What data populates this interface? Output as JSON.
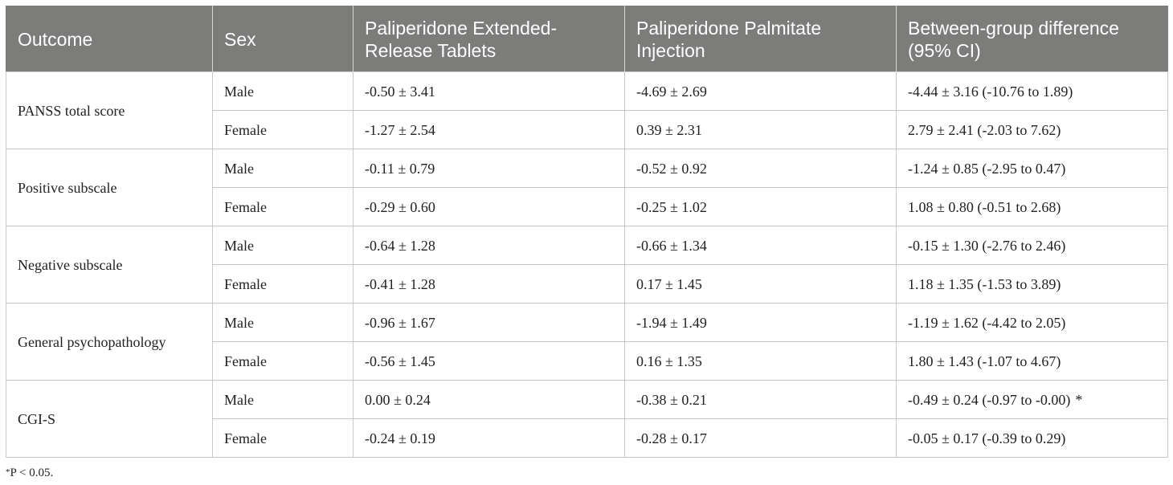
{
  "table": {
    "headers": [
      "Outcome",
      "Sex",
      "Paliperidone Extended-Release Tablets",
      "Paliperidone Palmitate Injection",
      "Between-group difference (95% CI)"
    ],
    "groups": [
      {
        "outcome": "PANSS total score",
        "rows": [
          {
            "sex": "Male",
            "er_tablets": "-0.50 ± 3.41",
            "palmitate": "-4.69 ± 2.69",
            "difference": "-4.44 ± 3.16 (-10.76 to 1.89)",
            "mark": ""
          },
          {
            "sex": "Female",
            "er_tablets": "-1.27 ± 2.54",
            "palmitate": "0.39 ± 2.31",
            "difference": "2.79 ± 2.41 (-2.03 to 7.62)",
            "mark": ""
          }
        ]
      },
      {
        "outcome": "Positive subscale",
        "rows": [
          {
            "sex": "Male",
            "er_tablets": "-0.11 ± 0.79",
            "palmitate": "-0.52 ± 0.92",
            "difference": "-1.24 ± 0.85 (-2.95 to 0.47)",
            "mark": ""
          },
          {
            "sex": "Female",
            "er_tablets": "-0.29 ± 0.60",
            "palmitate": "-0.25 ± 1.02",
            "difference": "1.08 ± 0.80 (-0.51 to 2.68)",
            "mark": ""
          }
        ]
      },
      {
        "outcome": "Negative subscale",
        "rows": [
          {
            "sex": "Male",
            "er_tablets": "-0.64 ± 1.28",
            "palmitate": "-0.66 ± 1.34",
            "difference": "-0.15 ± 1.30 (-2.76 to 2.46)",
            "mark": ""
          },
          {
            "sex": "Female",
            "er_tablets": "-0.41 ± 1.28",
            "palmitate": "0.17 ± 1.45",
            "difference": "1.18 ± 1.35 (-1.53 to 3.89)",
            "mark": ""
          }
        ]
      },
      {
        "outcome": "General psychopathology",
        "rows": [
          {
            "sex": "Male",
            "er_tablets": "-0.96 ± 1.67",
            "palmitate": "-1.94 ± 1.49",
            "difference": "-1.19 ± 1.62 (-4.42 to 2.05)",
            "mark": ""
          },
          {
            "sex": "Female",
            "er_tablets": "-0.56 ± 1.45",
            "palmitate": "0.16 ± 1.35",
            "difference": "1.80 ± 1.43 (-1.07 to 4.67)",
            "mark": ""
          }
        ]
      },
      {
        "outcome": "CGI-S",
        "rows": [
          {
            "sex": "Male",
            "er_tablets": "0.00 ± 0.24",
            "palmitate": "-0.38 ± 0.21",
            "difference": "-0.49 ± 0.24 (-0.97 to -0.00)",
            "mark": "*"
          },
          {
            "sex": "Female",
            "er_tablets": "-0.24 ± 0.19",
            "palmitate": "-0.28 ± 0.17",
            "difference": "-0.05 ± 0.17 (-0.39 to 0.29)",
            "mark": ""
          }
        ]
      }
    ]
  },
  "footnote": {
    "symbol": "*",
    "text": "P < 0.05."
  },
  "colors": {
    "header_bg": "#7c7d7b",
    "header_text": "#ffffff",
    "border": "#c8c8c8",
    "body_text": "#222222"
  }
}
